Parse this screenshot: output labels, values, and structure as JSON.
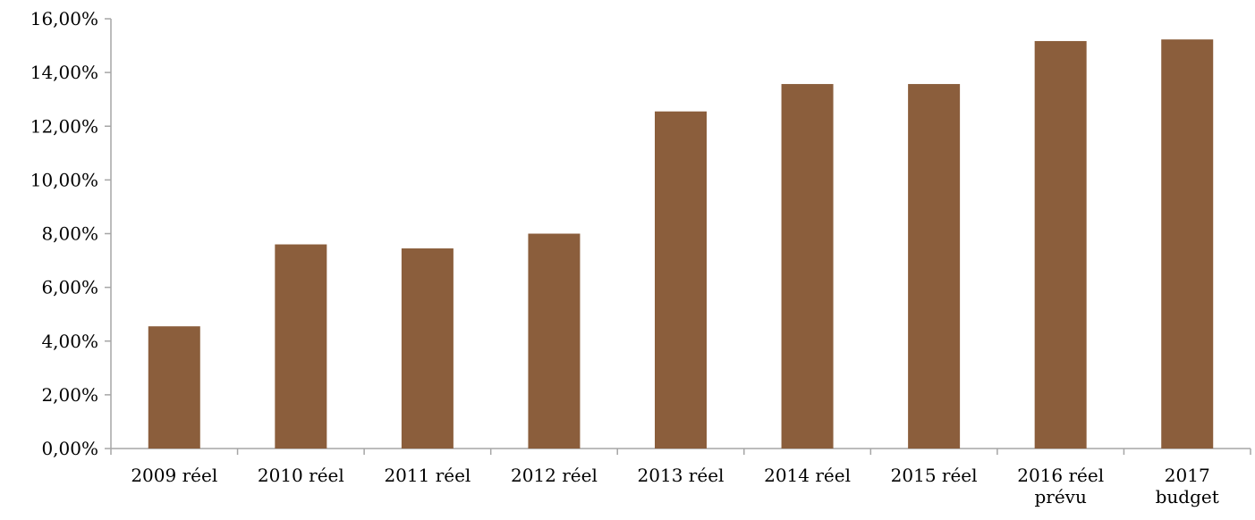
{
  "chart_data": {
    "type": "bar",
    "categories": [
      [
        "2009 réel"
      ],
      [
        "2010 réel"
      ],
      [
        "2011 réel"
      ],
      [
        "2012 réel"
      ],
      [
        "2013 réel"
      ],
      [
        "2014 réel"
      ],
      [
        "2015 réel"
      ],
      [
        "2016 réel",
        "prévu"
      ],
      [
        "2017",
        "budget"
      ]
    ],
    "values": [
      4.55,
      7.6,
      7.45,
      8.0,
      12.55,
      13.57,
      13.57,
      15.17,
      15.23
    ],
    "ylim": [
      0,
      16
    ],
    "yticks": [
      {
        "value": 0,
        "label": "0,00%"
      },
      {
        "value": 2,
        "label": "2,00%"
      },
      {
        "value": 4,
        "label": "4,00%"
      },
      {
        "value": 6,
        "label": "6,00%"
      },
      {
        "value": 8,
        "label": "8,00%"
      },
      {
        "value": 10,
        "label": "10,00%"
      },
      {
        "value": 12,
        "label": "12,00%"
      },
      {
        "value": 14,
        "label": "14,00%"
      },
      {
        "value": 16,
        "label": "16,00%"
      }
    ],
    "grid": false,
    "legend": "none",
    "bar_color": "#8B5E3C",
    "axis_color": "#a6a6a6"
  }
}
